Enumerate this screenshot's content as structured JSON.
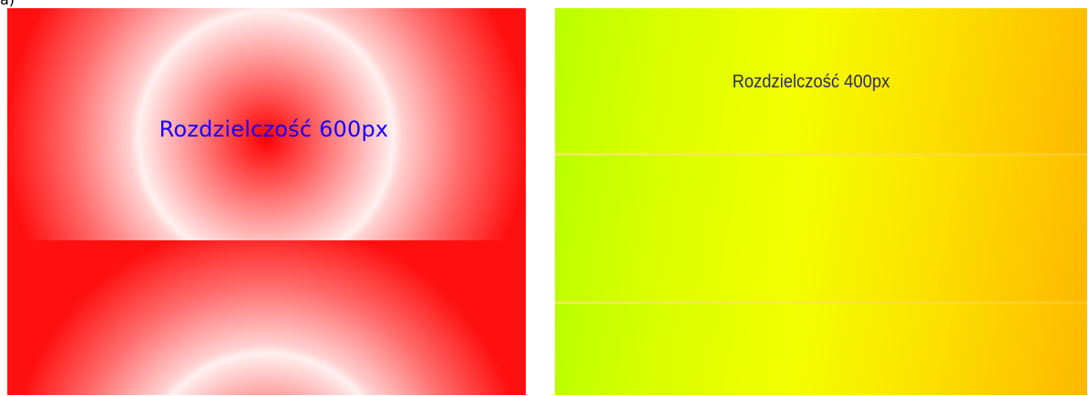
{
  "caption": "a)",
  "panels": {
    "left": {
      "label": "Rozdzielczość 600px",
      "label_color": "#1400ff",
      "background": "#ff0000"
    },
    "right": {
      "label": "Rozdzielczość 400px",
      "label_color": "#2b2b55",
      "background_start": "#b9ff00",
      "background_end": "#feb800"
    }
  }
}
